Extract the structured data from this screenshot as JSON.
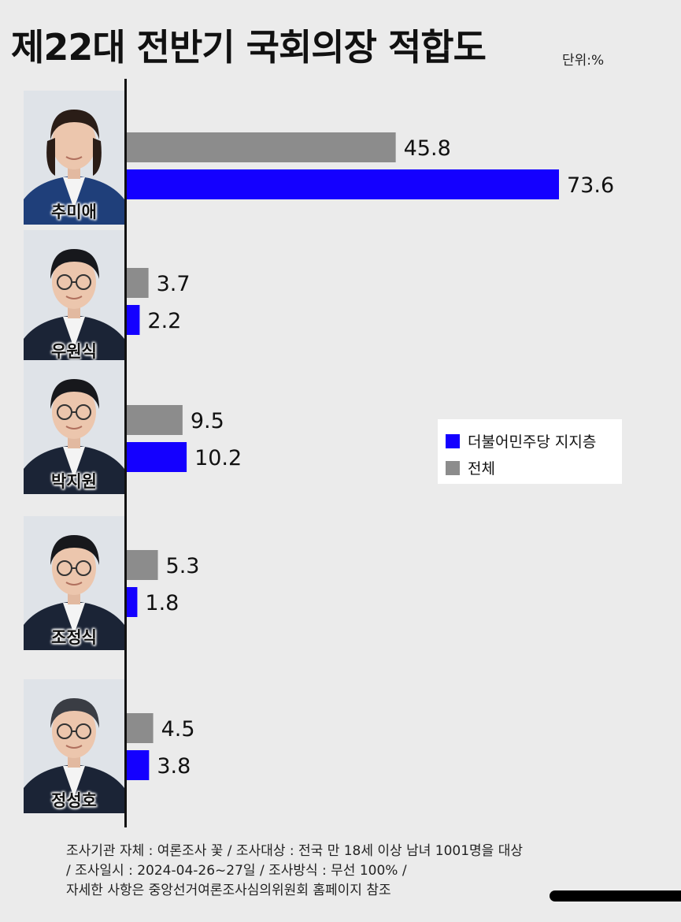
{
  "title": "제22대 전반기 국회의장 적합도",
  "unit_label": "단위:%",
  "colors": {
    "democratic_supporters": "#1400ff",
    "overall": "#8c8c8c",
    "background": "#ebebeb"
  },
  "candidates": [
    {
      "name": "추미애",
      "photo_icon": "candidate-portrait"
    },
    {
      "name": "우원식",
      "photo_icon": "candidate-portrait"
    },
    {
      "name": "박지원",
      "photo_icon": "candidate-portrait"
    },
    {
      "name": "조정식",
      "photo_icon": "candidate-portrait"
    },
    {
      "name": "정성호",
      "photo_icon": "candidate-portrait"
    }
  ],
  "chart_data": {
    "type": "bar",
    "orientation": "horizontal",
    "categories": [
      "추미애",
      "우원식",
      "박지원",
      "조정식",
      "정성호"
    ],
    "series": [
      {
        "name": "전체",
        "color": "#8c8c8c",
        "values": [
          45.8,
          3.7,
          9.5,
          5.3,
          4.5
        ]
      },
      {
        "name": "더불어민주당 지지층",
        "color": "#1400ff",
        "values": [
          73.6,
          2.2,
          10.2,
          1.8,
          3.8
        ]
      }
    ],
    "value_labels": {
      "전체": [
        "45.8",
        "3.7",
        "9.5",
        "5.3",
        "4.5"
      ],
      "더불어민주당 지지층": [
        "73.6",
        "2.2",
        "10.2",
        "1.8",
        "3.8"
      ]
    },
    "unit": "%",
    "xlim": [
      0,
      80
    ],
    "grid": false,
    "legend_position": "right-middle"
  },
  "legend": {
    "items": [
      {
        "label": "더불어민주당 지지층",
        "color": "#1400ff"
      },
      {
        "label": "전체",
        "color": "#8c8c8c"
      }
    ]
  },
  "footnote": {
    "lines": [
      "조사기관 자체 : 여론조사 꽃 / 조사대상 : 전국 만 18세 이상 남녀 1001명을 대상",
      " /  조사일시 : 2024-04-26~27일 / 조사방식 : 무선 100% /",
      "자세한 사항은 중앙선거여론조사심의위원회 홈페이지 참조"
    ]
  }
}
